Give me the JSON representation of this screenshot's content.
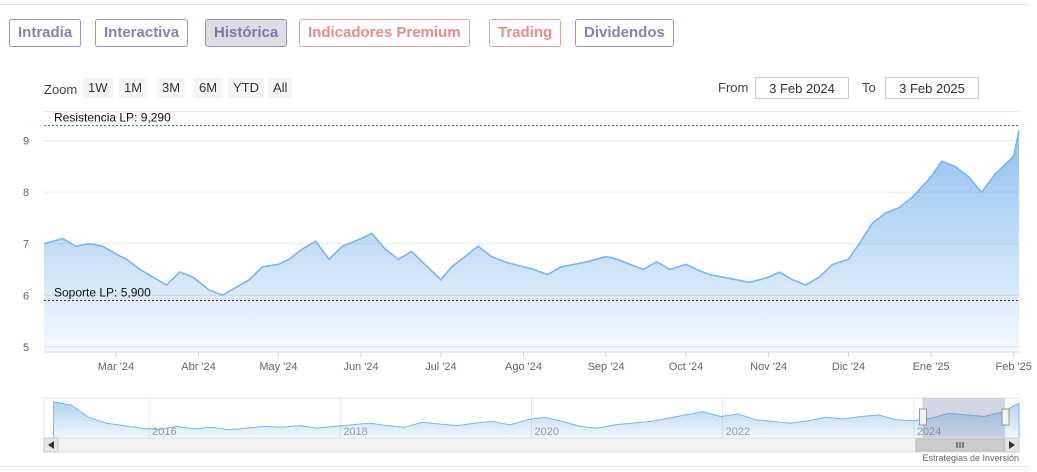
{
  "tabs": [
    {
      "label": "Intradía",
      "color": "#8b80b5",
      "active": false
    },
    {
      "label": "Interactiva",
      "color": "#8b80b5",
      "active": false
    },
    {
      "label": "Histórica",
      "color": "#8b80b5",
      "active": true
    },
    {
      "label": "Indicadores Premium",
      "color": "#e98d89",
      "active": false
    },
    {
      "label": "Trading",
      "color": "#e98d89",
      "active": false
    },
    {
      "label": "Dividendos",
      "color": "#8b80b5",
      "active": false
    }
  ],
  "toolbar": {
    "zoom_label": "Zoom",
    "zoom_buttons": [
      "1W",
      "1M",
      "3M",
      "6M",
      "YTD",
      "All"
    ],
    "from_label": "From",
    "from_value": "3 Feb 2024",
    "to_label": "To",
    "to_value": "3 Feb 2025"
  },
  "watermark": "Estrategias de Inversión",
  "colors": {
    "line": "#7cb5ec",
    "resistance_line": "#2e7d32",
    "support_line": "#8b1a1a"
  },
  "chart_data": {
    "type": "area",
    "xlabel": "",
    "ylabel": "",
    "ylim": [
      4.9,
      9.4
    ],
    "y_ticks": [
      5,
      6,
      7,
      8,
      9
    ],
    "x_ticks": [
      {
        "label": "Mar '24",
        "date": "2024-03-01"
      },
      {
        "label": "Abr '24",
        "date": "2024-04-01"
      },
      {
        "label": "May '24",
        "date": "2024-05-01"
      },
      {
        "label": "Jun '24",
        "date": "2024-06-01"
      },
      {
        "label": "Jul '24",
        "date": "2024-07-01"
      },
      {
        "label": "Ago '24",
        "date": "2024-08-01"
      },
      {
        "label": "Sep '24",
        "date": "2024-09-01"
      },
      {
        "label": "Oct '24",
        "date": "2024-10-01"
      },
      {
        "label": "Nov '24",
        "date": "2024-11-01"
      },
      {
        "label": "Dic '24",
        "date": "2024-12-01"
      },
      {
        "label": "Ene '25",
        "date": "2025-01-01"
      },
      {
        "label": "Feb '25",
        "date": "2025-02-01"
      }
    ],
    "x_range": [
      "2024-02-03",
      "2025-02-03"
    ],
    "grid": true,
    "series": [
      {
        "x": [
          "2024-02-03",
          "2024-02-10",
          "2024-02-15",
          "2024-02-20",
          "2024-02-25",
          "2024-03-01",
          "2024-03-05",
          "2024-03-10",
          "2024-03-15",
          "2024-03-20",
          "2024-03-25",
          "2024-03-30",
          "2024-04-05",
          "2024-04-10",
          "2024-04-15",
          "2024-04-20",
          "2024-04-25",
          "2024-05-01",
          "2024-05-05",
          "2024-05-10",
          "2024-05-15",
          "2024-05-20",
          "2024-05-25",
          "2024-06-01",
          "2024-06-05",
          "2024-06-10",
          "2024-06-15",
          "2024-06-20",
          "2024-06-25",
          "2024-07-01",
          "2024-07-05",
          "2024-07-10",
          "2024-07-15",
          "2024-07-20",
          "2024-07-25",
          "2024-08-01",
          "2024-08-05",
          "2024-08-10",
          "2024-08-15",
          "2024-08-20",
          "2024-08-25",
          "2024-09-01",
          "2024-09-05",
          "2024-09-10",
          "2024-09-15",
          "2024-09-20",
          "2024-09-25",
          "2024-10-01",
          "2024-10-05",
          "2024-10-10",
          "2024-10-15",
          "2024-10-20",
          "2024-10-25",
          "2024-11-01",
          "2024-11-05",
          "2024-11-10",
          "2024-11-15",
          "2024-11-20",
          "2024-11-25",
          "2024-12-01",
          "2024-12-05",
          "2024-12-10",
          "2024-12-15",
          "2024-12-20",
          "2024-12-25",
          "2025-01-01",
          "2025-01-05",
          "2025-01-10",
          "2025-01-15",
          "2025-01-20",
          "2025-01-25",
          "2025-02-01",
          "2025-02-03"
        ],
        "values": [
          7.0,
          7.1,
          6.95,
          7.0,
          6.95,
          6.8,
          6.7,
          6.5,
          6.35,
          6.2,
          6.45,
          6.35,
          6.1,
          6.0,
          6.15,
          6.3,
          6.55,
          6.6,
          6.7,
          6.9,
          7.05,
          6.7,
          6.95,
          7.1,
          7.2,
          6.9,
          6.7,
          6.85,
          6.6,
          6.3,
          6.55,
          6.75,
          6.95,
          6.75,
          6.65,
          6.55,
          6.5,
          6.4,
          6.55,
          6.6,
          6.65,
          6.75,
          6.7,
          6.6,
          6.5,
          6.65,
          6.5,
          6.6,
          6.5,
          6.4,
          6.35,
          6.3,
          6.25,
          6.35,
          6.45,
          6.3,
          6.2,
          6.35,
          6.6,
          6.7,
          7.0,
          7.4,
          7.6,
          7.7,
          7.9,
          8.3,
          8.6,
          8.5,
          8.3,
          8.0,
          8.35,
          8.7,
          9.2
        ]
      }
    ],
    "annotations": [
      {
        "label": "Resistencia LP: 9,290",
        "value": 9.29
      },
      {
        "label": "Soporte LP: 5,900",
        "value": 5.9
      }
    ],
    "navigator": {
      "year_labels": [
        "2016",
        "2018",
        "2020",
        "2022",
        "2024"
      ],
      "years": [
        2016,
        2018,
        2020,
        2022,
        2024
      ],
      "x_range": [
        2014.9,
        2025.1
      ],
      "selection": [
        2024.09,
        2025.09
      ],
      "values": [
        9.4,
        9.0,
        7.5,
        6.8,
        6.5,
        6.2,
        6.0,
        6.4,
        6.1,
        6.3,
        6.0,
        6.2,
        6.4,
        6.3,
        6.5,
        6.2,
        6.4,
        6.6,
        6.8,
        6.5,
        6.3,
        6.9,
        6.7,
        6.5,
        6.8,
        7.0,
        6.6,
        7.2,
        7.5,
        7.0,
        6.4,
        6.2,
        6.6,
        6.8,
        7.0,
        7.4,
        7.8,
        8.2,
        7.6,
        7.9,
        7.2,
        7.0,
        6.8,
        7.1,
        7.5,
        7.3,
        7.6,
        7.8,
        7.2,
        7.1,
        7.4,
        8.0,
        7.8,
        7.6,
        8.1,
        9.2
      ]
    }
  }
}
